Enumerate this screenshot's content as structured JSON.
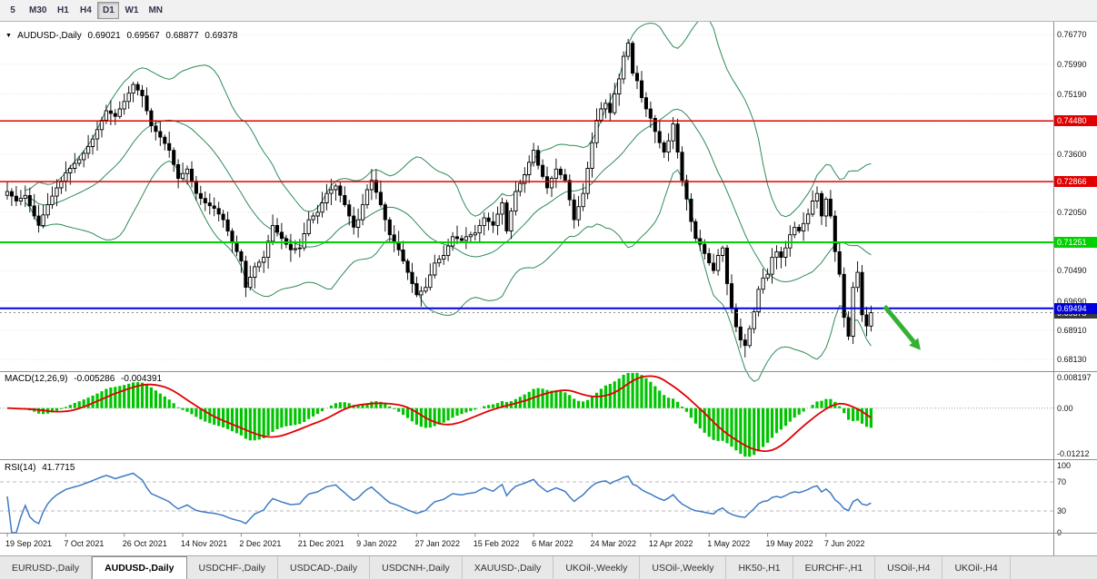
{
  "toolbar": {
    "timeframes": [
      {
        "label": "5",
        "active": false
      },
      {
        "label": "M30",
        "active": false
      },
      {
        "label": "H1",
        "active": false
      },
      {
        "label": "H4",
        "active": false
      },
      {
        "label": "D1",
        "active": true
      },
      {
        "label": "W1",
        "active": false
      },
      {
        "label": "MN",
        "active": false
      }
    ]
  },
  "chart": {
    "header": {
      "symbol": "AUDUSD-,Daily",
      "open": "0.69021",
      "high": "0.69567",
      "low": "0.68877",
      "close": "0.69378"
    }
  },
  "chart_data": {
    "type": "candlestick",
    "symbol": "AUDUSD-,Daily",
    "timeframe": "Daily",
    "candle_colors": {
      "up_fill": "#ffffff",
      "down_fill": "#000000",
      "border": "#000000"
    },
    "y_axis": {
      "min": 0.6782,
      "max": 0.7712,
      "ticks": [
        {
          "label": "0.76770",
          "value": 0.7677
        },
        {
          "label": "0.75990",
          "value": 0.7599
        },
        {
          "label": "0.75190",
          "value": 0.7519
        },
        {
          "label": "0.73600",
          "value": 0.736
        },
        {
          "label": "0.72050",
          "value": 0.7205
        },
        {
          "label": "0.70490",
          "value": 0.7049
        },
        {
          "label": "0.69690",
          "value": 0.6969
        },
        {
          "label": "0.68910",
          "value": 0.6891
        },
        {
          "label": "0.68130",
          "value": 0.6813
        }
      ],
      "gridlines": [
        0.7677,
        0.7599,
        0.7519,
        0.7441,
        0.736,
        0.7281,
        0.7205,
        0.7125,
        0.7049,
        0.6969,
        0.6891,
        0.6813
      ]
    },
    "x_tick_labels": [
      {
        "label": "19 Sep 2021",
        "index": 0
      },
      {
        "label": "7 Oct 2021",
        "index": 13
      },
      {
        "label": "26 Oct 2021",
        "index": 26
      },
      {
        "label": "14 Nov 2021",
        "index": 39
      },
      {
        "label": "2 Dec 2021",
        "index": 52
      },
      {
        "label": "21 Dec 2021",
        "index": 65
      },
      {
        "label": "9 Jan 2022",
        "index": 78
      },
      {
        "label": "27 Jan 2022",
        "index": 91
      },
      {
        "label": "15 Feb 2022",
        "index": 104
      },
      {
        "label": "6 Mar 2022",
        "index": 117
      },
      {
        "label": "24 Mar 2022",
        "index": 130
      },
      {
        "label": "12 Apr 2022",
        "index": 143
      },
      {
        "label": "1 May 2022",
        "index": 156
      },
      {
        "label": "19 May 2022",
        "index": 169
      },
      {
        "label": "7 Jun 2022",
        "index": 182
      }
    ],
    "closes": [
      0.726,
      0.7248,
      0.7235,
      0.7242,
      0.725,
      0.7222,
      0.7195,
      0.717,
      0.7198,
      0.7225,
      0.7248,
      0.727,
      0.7288,
      0.731,
      0.7322,
      0.7335,
      0.7345,
      0.7362,
      0.738,
      0.74,
      0.7425,
      0.745,
      0.7475,
      0.7468,
      0.746,
      0.748,
      0.75,
      0.7522,
      0.7545,
      0.753,
      0.7515,
      0.7475,
      0.7435,
      0.742,
      0.7405,
      0.7388,
      0.737,
      0.7332,
      0.7295,
      0.7308,
      0.732,
      0.7288,
      0.7255,
      0.7242,
      0.723,
      0.7222,
      0.7215,
      0.72,
      0.7185,
      0.7155,
      0.7125,
      0.71,
      0.7075,
      0.7005,
      0.7032,
      0.706,
      0.7072,
      0.7085,
      0.7128,
      0.717,
      0.7152,
      0.7135,
      0.712,
      0.7105,
      0.7108,
      0.711,
      0.7148,
      0.7185,
      0.7195,
      0.7205,
      0.723,
      0.7255,
      0.7265,
      0.7275,
      0.725,
      0.7225,
      0.7195,
      0.7165,
      0.7185,
      0.7225,
      0.7265,
      0.729,
      0.7258,
      0.7225,
      0.7185,
      0.7145,
      0.7125,
      0.7105,
      0.7075,
      0.7045,
      0.7015,
      0.6985,
      0.6995,
      0.7005,
      0.7038,
      0.707,
      0.708,
      0.709,
      0.7115,
      0.714,
      0.7135,
      0.713,
      0.714,
      0.7145,
      0.715,
      0.717,
      0.719,
      0.718,
      0.717,
      0.72,
      0.723,
      0.7155,
      0.7208,
      0.726,
      0.7282,
      0.7305,
      0.7338,
      0.737,
      0.733,
      0.73,
      0.727,
      0.7295,
      0.732,
      0.7305,
      0.729,
      0.7238,
      0.7185,
      0.722,
      0.7255,
      0.7322,
      0.739,
      0.745,
      0.748,
      0.7495,
      0.747,
      0.752,
      0.756,
      0.762,
      0.7655,
      0.7575,
      0.7555,
      0.751,
      0.748,
      0.7455,
      0.742,
      0.739,
      0.7365,
      0.7395,
      0.744,
      0.7365,
      0.729,
      0.724,
      0.718,
      0.7135,
      0.712,
      0.7095,
      0.707,
      0.705,
      0.709,
      0.711,
      0.7015,
      0.695,
      0.69,
      0.6865,
      0.685,
      0.6895,
      0.694,
      0.7,
      0.703,
      0.704,
      0.7085,
      0.71,
      0.7085,
      0.711,
      0.7145,
      0.7165,
      0.7155,
      0.7175,
      0.72,
      0.7235,
      0.7255,
      0.7195,
      0.724,
      0.7195,
      0.71,
      0.704,
      0.6925,
      0.6875,
      0.7005,
      0.7045,
      0.6932,
      0.6902,
      0.6938
    ],
    "last_bar": {
      "open": 0.69021,
      "high": 0.69567,
      "low": 0.68877,
      "close": 0.69378
    },
    "current_price": {
      "label": "0.69378",
      "value": 0.69378
    },
    "overlays": {
      "bollinger": {
        "color": "#2E8B57"
      },
      "hlines": [
        {
          "label": "0.74480",
          "value": 0.7448,
          "color": "#E00000",
          "width": 1.5
        },
        {
          "label": "0.72866",
          "value": 0.72866,
          "color": "#E00000",
          "width": 1.5
        },
        {
          "label": "0.71251",
          "value": 0.71251,
          "color": "#00D200",
          "width": 2
        },
        {
          "label": "0.69494",
          "value": 0.69494,
          "color": "#0000DC",
          "width": 2
        }
      ],
      "trend_arrow": {
        "color": "#33B133",
        "from": {
          "index": 195,
          "price": 0.6955
        },
        "to": {
          "index": 203,
          "price": 0.6838
        }
      }
    },
    "indicators": [
      {
        "type": "macd",
        "label": "MACD(12,26,9)",
        "value": "-0.005286",
        "signal_value": "-0.004391",
        "params": [
          12,
          26,
          9
        ],
        "range": {
          "min": -0.0135,
          "max": 0.0095
        },
        "ticks": [
          {
            "label": "0.008197",
            "value": 0.008197
          },
          {
            "label": "0.00",
            "value": 0
          },
          {
            "label": "-0.01212",
            "value": -0.01212
          }
        ],
        "histogram_color": "#00C400",
        "signal_color": "#E00000"
      },
      {
        "type": "rsi",
        "label": "RSI(14)",
        "value": "41.7715",
        "period": 14,
        "range": {
          "min": 0,
          "max": 100
        },
        "ticks": [
          {
            "label": "100",
            "value": 100
          },
          {
            "label": "70",
            "value": 70
          },
          {
            "label": "30",
            "value": 30
          },
          {
            "label": "0",
            "value": 0
          }
        ],
        "levels": [
          70,
          30
        ],
        "color": "#3E7BC4"
      }
    ]
  },
  "tabs": [
    {
      "label": "EURUSD-,Daily",
      "active": false
    },
    {
      "label": "AUDUSD-,Daily",
      "active": true
    },
    {
      "label": "USDCHF-,Daily",
      "active": false
    },
    {
      "label": "USDCAD-,Daily",
      "active": false
    },
    {
      "label": "USDCNH-,Daily",
      "active": false
    },
    {
      "label": "XAUUSD-,Daily",
      "active": false
    },
    {
      "label": "UKOil-,Weekly",
      "active": false
    },
    {
      "label": "USOil-,Weekly",
      "active": false
    },
    {
      "label": "HK50-,H1",
      "active": false
    },
    {
      "label": "EURCHF-,H1",
      "active": false
    },
    {
      "label": "USOil-,H4",
      "active": false
    },
    {
      "label": "UKOil-,H4",
      "active": false
    }
  ]
}
